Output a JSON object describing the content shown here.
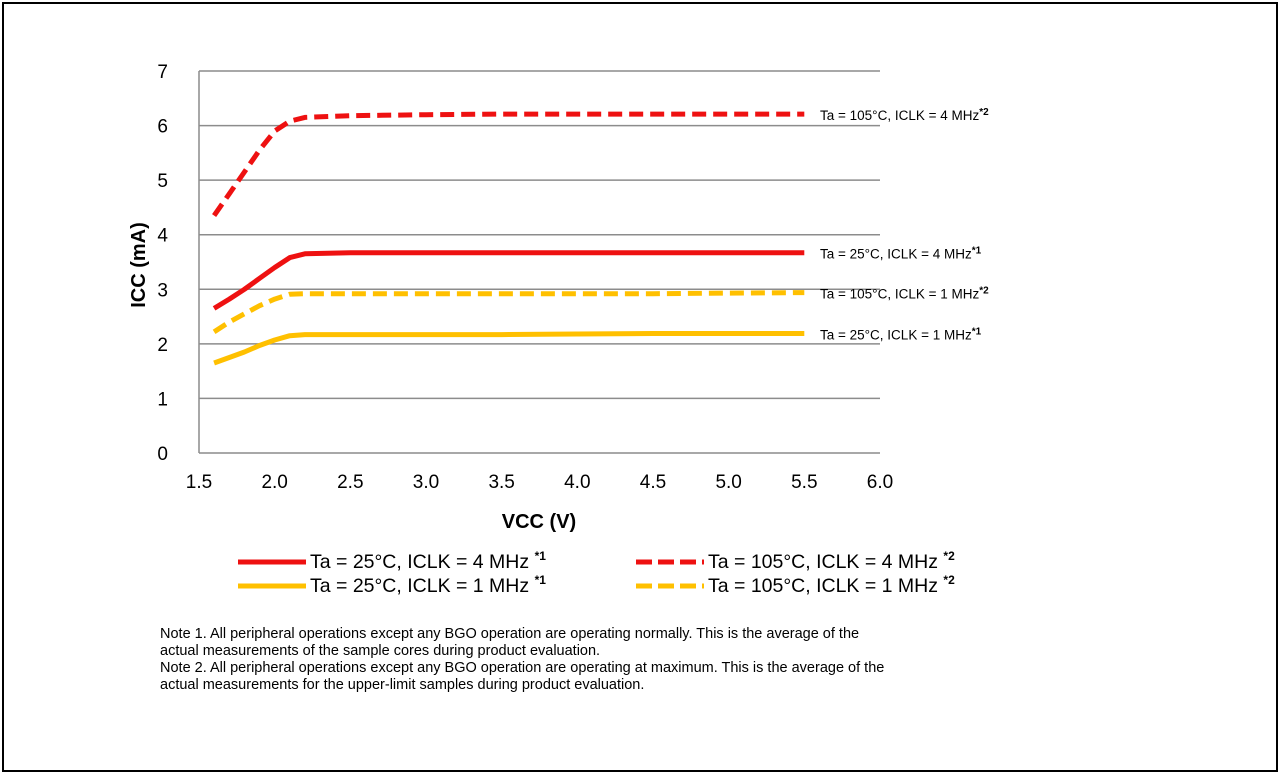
{
  "chart_data": {
    "type": "line",
    "title": "",
    "xlabel": "VCC (V)",
    "ylabel": "ICC (mA)",
    "xlim": [
      1.5,
      6.0
    ],
    "ylim": [
      0,
      7
    ],
    "xticks": [
      "1.5",
      "2.0",
      "2.5",
      "3.0",
      "3.5",
      "4.0",
      "4.5",
      "5.0",
      "5.5",
      "6.0"
    ],
    "yticks": [
      "0",
      "1",
      "2",
      "3",
      "4",
      "5",
      "6",
      "7"
    ],
    "grid": "horizontal",
    "legend_position": "bottom",
    "series": [
      {
        "key": "s105_4",
        "name": "Ta = 105°C, ICLK = 4 MHz",
        "sup": "*2",
        "line_label": "Ta = 105°C, ICLK = 4 MHz",
        "color": "#ee1111",
        "dash": "dashed",
        "x": [
          1.6,
          1.7,
          1.8,
          1.9,
          2.0,
          2.1,
          2.2,
          2.5,
          3.0,
          3.5,
          4.0,
          4.5,
          5.0,
          5.5
        ],
        "y": [
          4.35,
          4.75,
          5.15,
          5.55,
          5.9,
          6.08,
          6.15,
          6.18,
          6.2,
          6.21,
          6.21,
          6.21,
          6.21,
          6.21
        ]
      },
      {
        "key": "s25_4",
        "name": "Ta = 25°C, ICLK = 4 MHz",
        "sup": "*1",
        "line_label": "Ta = 25°C, ICLK = 4 MHz",
        "color": "#ee1111",
        "dash": "solid",
        "x": [
          1.6,
          1.7,
          1.8,
          1.9,
          2.0,
          2.1,
          2.2,
          2.5,
          3.0,
          3.5,
          4.0,
          4.5,
          5.0,
          5.5
        ],
        "y": [
          2.65,
          2.82,
          3.0,
          3.2,
          3.4,
          3.58,
          3.65,
          3.67,
          3.67,
          3.67,
          3.67,
          3.67,
          3.67,
          3.67
        ]
      },
      {
        "key": "s105_1",
        "name": "Ta = 105°C, ICLK = 1 MHz",
        "sup": "*2",
        "line_label": "Ta = 105°C, ICLK = 1 MHz",
        "color": "#ffc000",
        "dash": "dashed",
        "x": [
          1.6,
          1.7,
          1.8,
          1.9,
          2.0,
          2.1,
          2.2,
          2.5,
          3.0,
          3.5,
          4.0,
          4.5,
          5.0,
          5.5
        ],
        "y": [
          2.22,
          2.4,
          2.55,
          2.7,
          2.82,
          2.91,
          2.92,
          2.92,
          2.92,
          2.92,
          2.92,
          2.92,
          2.93,
          2.94
        ]
      },
      {
        "key": "s25_1",
        "name": "Ta = 25°C, ICLK = 1 MHz",
        "sup": "*1",
        "line_label": "Ta = 25°C, ICLK = 1 MHz",
        "color": "#ffc000",
        "dash": "solid",
        "x": [
          1.6,
          1.7,
          1.8,
          1.9,
          2.0,
          2.1,
          2.2,
          2.5,
          3.0,
          3.5,
          4.0,
          4.5,
          5.0,
          5.5
        ],
        "y": [
          1.65,
          1.75,
          1.85,
          1.97,
          2.07,
          2.15,
          2.17,
          2.17,
          2.17,
          2.17,
          2.18,
          2.19,
          2.19,
          2.19
        ]
      }
    ],
    "line_label_sups": [
      "*2",
      "*1",
      "*2",
      "*1"
    ]
  },
  "notes": [
    "Note 1. All peripheral operations except any BGO operation are operating normally. This is the average of the",
    "actual measurements of the sample cores during product evaluation.",
    "Note 2. All peripheral operations except any BGO operation are operating at maximum. This is the average of the",
    "actual measurements for the upper-limit samples during product evaluation."
  ]
}
